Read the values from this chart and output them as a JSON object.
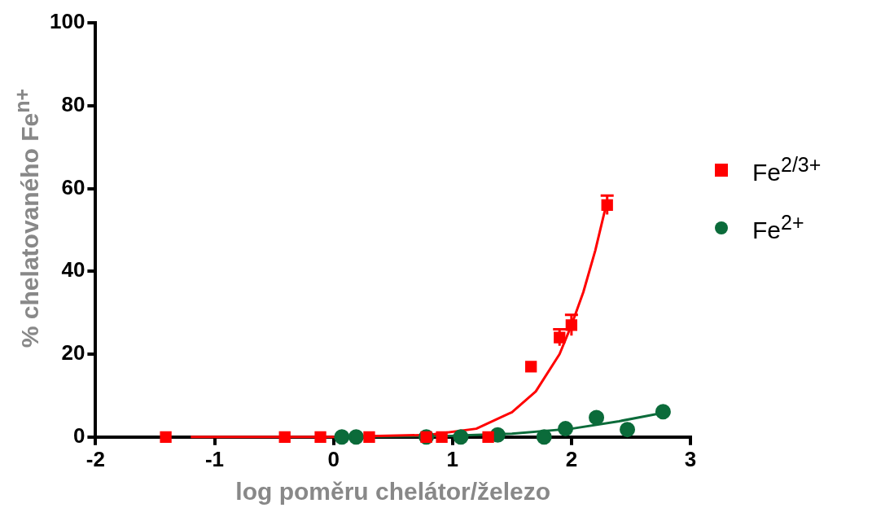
{
  "chart_data": {
    "type": "scatter",
    "xlabel": "log poměru chelátor/železo",
    "ylabel": "% chelatovaného Fe$^{n+}$",
    "xlim": [
      -2,
      3
    ],
    "xticks": [
      -2,
      -1,
      0,
      1,
      2,
      3
    ],
    "ylim": [
      0,
      100
    ],
    "yticks": [
      0,
      20,
      40,
      60,
      80,
      100
    ],
    "grid": false,
    "legend": "right",
    "series": [
      {
        "name": "Fe$^{2/3+}$",
        "color": "#ff0000",
        "marker": "square",
        "x": [
          -1.41,
          -0.41,
          -0.11,
          0.3,
          0.78,
          0.91,
          1.3,
          1.66,
          1.9,
          2.0,
          2.3
        ],
        "values": [
          0,
          0,
          0,
          0,
          0,
          0,
          0,
          17,
          24,
          27,
          56
        ],
        "errors": [
          null,
          null,
          null,
          null,
          null,
          null,
          null,
          null,
          2,
          2.5,
          2.3
        ]
      },
      {
        "name": "Fe$^{2+}$",
        "color": "#0b6b3a",
        "marker": "circle",
        "x": [
          0.07,
          0.19,
          0.78,
          1.07,
          1.38,
          1.77,
          1.95,
          2.21,
          2.47,
          2.77
        ],
        "values": [
          0,
          0,
          0,
          0,
          0.5,
          0,
          2,
          4.7,
          1.8,
          6.1
        ]
      },
      {
        "type": "line",
        "color": "#ff0000",
        "marker": "none",
        "x": [
          -1.2,
          0,
          0.8,
          1.2,
          1.5,
          1.7,
          1.9,
          2.0,
          2.1,
          2.2,
          2.3
        ],
        "values": [
          0,
          0,
          0.5,
          2,
          6,
          11,
          20,
          27,
          35,
          45,
          57
        ]
      },
      {
        "type": "line",
        "color": "#0b6b3a",
        "marker": "none",
        "x": [
          0,
          1,
          1.5,
          2,
          2.4,
          2.8
        ],
        "values": [
          0,
          0.3,
          0.8,
          2,
          3.8,
          6
        ]
      }
    ]
  }
}
